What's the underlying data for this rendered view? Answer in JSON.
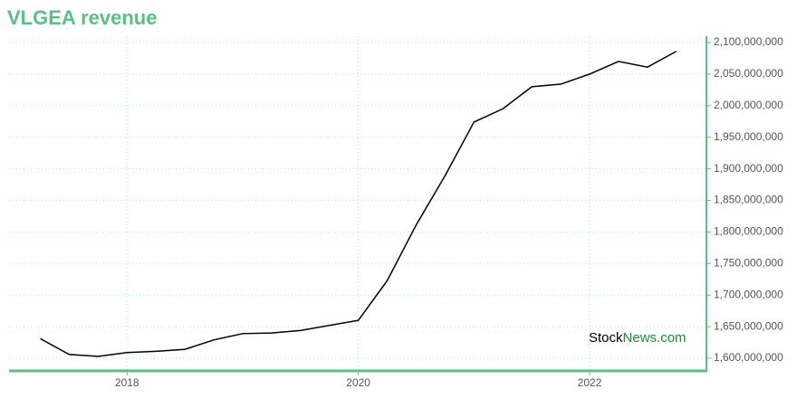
{
  "chart_data": {
    "type": "line",
    "title": "VLGEA revenue",
    "watermark": {
      "prefix": "Stock",
      "suffix": "News.com"
    },
    "x": [
      2017.25,
      2017.5,
      2017.75,
      2018.0,
      2018.25,
      2018.5,
      2018.75,
      2019.0,
      2019.25,
      2019.5,
      2019.75,
      2020.0,
      2020.25,
      2020.5,
      2020.75,
      2021.0,
      2021.25,
      2021.5,
      2021.75,
      2022.0,
      2022.25,
      2022.5,
      2022.75
    ],
    "series": [
      {
        "name": "revenue",
        "color": "#000000",
        "values": [
          1631000000,
          1606000000,
          1603000000,
          1609000000,
          1611000000,
          1614000000,
          1629000000,
          1639000000,
          1640000000,
          1644000000,
          1652000000,
          1660000000,
          1723000000,
          1811000000,
          1889000000,
          1974000000,
          1995000000,
          2030000000,
          2034000000,
          2050000000,
          2070000000,
          2061000000,
          2086000000
        ]
      }
    ],
    "xlim": [
      2016.98,
      2023.01
    ],
    "xticks": [
      2018,
      2020,
      2022
    ],
    "ylim": [
      1580000000,
      2110000000
    ],
    "yticks": [
      {
        "value": 1600000000,
        "label": "1,600,000,000"
      },
      {
        "value": 1650000000,
        "label": "1,650,000,000"
      },
      {
        "value": 1700000000,
        "label": "1,700,000,000"
      },
      {
        "value": 1750000000,
        "label": "1,750,000,000"
      },
      {
        "value": 1800000000,
        "label": "1,800,000,000"
      },
      {
        "value": 1850000000,
        "label": "1,850,000,000"
      },
      {
        "value": 1900000000,
        "label": "1,900,000,000"
      },
      {
        "value": 1950000000,
        "label": "1,950,000,000"
      },
      {
        "value": 2000000000,
        "label": "2,000,000,000"
      },
      {
        "value": 2050000000,
        "label": "2,050,000,000"
      },
      {
        "value": 2100000000,
        "label": "2,100,000,000"
      }
    ],
    "grid": true,
    "axis_color": "#5cbf85"
  }
}
